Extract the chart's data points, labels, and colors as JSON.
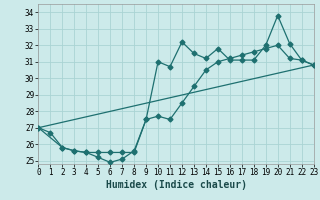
{
  "xlabel": "Humidex (Indice chaleur)",
  "xlim": [
    0,
    23
  ],
  "ylim": [
    24.8,
    34.5
  ],
  "yticks": [
    25,
    26,
    27,
    28,
    29,
    30,
    31,
    32,
    33,
    34
  ],
  "xticks": [
    0,
    1,
    2,
    3,
    4,
    5,
    6,
    7,
    8,
    9,
    10,
    11,
    12,
    13,
    14,
    15,
    16,
    17,
    18,
    19,
    20,
    21,
    22,
    23
  ],
  "bg_color": "#cceaea",
  "line_color": "#1e7070",
  "grid_color": "#aad4d4",
  "line1_x": [
    0,
    1,
    2,
    3,
    4,
    5,
    6,
    7,
    8,
    9,
    10,
    11,
    12,
    13,
    14,
    15,
    16,
    17,
    18,
    19,
    20,
    21,
    22,
    23
  ],
  "line1_y": [
    27.0,
    26.7,
    25.8,
    25.6,
    25.5,
    25.2,
    24.9,
    25.1,
    25.6,
    27.5,
    31.0,
    30.7,
    32.2,
    31.5,
    31.2,
    31.8,
    31.1,
    31.1,
    31.1,
    32.0,
    33.8,
    32.1,
    31.1,
    30.8
  ],
  "line2_x": [
    0,
    2,
    3,
    4,
    5,
    6,
    7,
    8,
    9,
    10,
    11,
    12,
    13,
    14,
    15,
    16,
    17,
    18,
    19,
    20,
    21,
    22,
    23
  ],
  "line2_y": [
    27.0,
    25.8,
    25.6,
    25.5,
    25.5,
    25.5,
    25.5,
    25.5,
    27.5,
    27.7,
    27.5,
    28.5,
    29.5,
    30.5,
    31.0,
    31.2,
    31.4,
    31.6,
    31.8,
    32.0,
    31.2,
    31.1,
    30.8
  ],
  "line3_x": [
    0,
    23
  ],
  "line3_y": [
    27.0,
    30.8
  ],
  "marker": "D",
  "marker_size": 2.5,
  "linewidth": 0.9
}
